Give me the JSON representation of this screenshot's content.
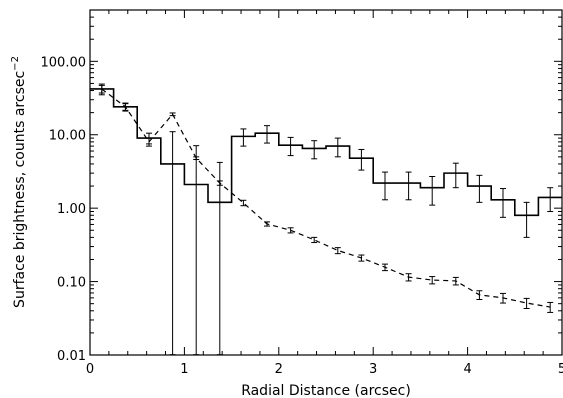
{
  "chart_data": {
    "type": "line",
    "title": "",
    "xlabel": "Radial Distance (arcsec)",
    "ylabel": "Surface brightness, counts arcsec",
    "ylabel_sup": "−2",
    "xlim": [
      0,
      5
    ],
    "ylim": [
      0.01,
      500
    ],
    "yscale": "log",
    "grid": false,
    "legend": "none",
    "x_ticks": [
      {
        "value": 0,
        "label": "0"
      },
      {
        "value": 1,
        "label": "1"
      },
      {
        "value": 2,
        "label": "2"
      },
      {
        "value": 3,
        "label": "3"
      },
      {
        "value": 4,
        "label": "4"
      },
      {
        "value": 5,
        "label": "5"
      }
    ],
    "y_ticks": [
      {
        "value": 0.01,
        "label": "0.01"
      },
      {
        "value": 0.1,
        "label": "0.10"
      },
      {
        "value": 1,
        "label": "1.00"
      },
      {
        "value": 10,
        "label": "10.00"
      },
      {
        "value": 100,
        "label": "100.00"
      }
    ],
    "series": [
      {
        "style": "solid-step",
        "color": "#000000",
        "bin_width": 0.25,
        "x": [
          0.125,
          0.375,
          0.625,
          0.875,
          1.125,
          1.375,
          1.625,
          1.875,
          2.125,
          2.375,
          2.625,
          2.875,
          3.125,
          3.375,
          3.625,
          3.875,
          4.125,
          4.375,
          4.625,
          4.875
        ],
        "y": [
          42,
          24,
          9,
          4.0,
          2.1,
          1.2,
          9.5,
          10.5,
          7.2,
          6.5,
          7.0,
          4.8,
          2.2,
          2.2,
          1.9,
          3.0,
          2.0,
          1.3,
          0.8,
          1.4
        ],
        "err": [
          7,
          3,
          1.5,
          7,
          5,
          3,
          2.5,
          2.8,
          2.0,
          1.8,
          2.0,
          1.5,
          0.9,
          0.9,
          0.8,
          1.1,
          0.8,
          0.55,
          0.4,
          0.5
        ]
      },
      {
        "style": "dashed",
        "color": "#000000",
        "x": [
          0.125,
          0.375,
          0.625,
          0.875,
          1.125,
          1.375,
          1.625,
          1.875,
          2.125,
          2.375,
          2.625,
          2.875,
          3.125,
          3.375,
          3.625,
          3.875,
          4.125,
          4.375,
          4.625,
          4.875
        ],
        "y": [
          42,
          24,
          8.0,
          19,
          4.8,
          2.2,
          1.18,
          0.61,
          0.5,
          0.37,
          0.265,
          0.21,
          0.157,
          0.115,
          0.105,
          0.102,
          0.066,
          0.06,
          0.051,
          0.045
        ],
        "err": [
          5,
          2.5,
          1.0,
          0.8,
          0.2,
          0.15,
          0.1,
          0.04,
          0.04,
          0.03,
          0.025,
          0.02,
          0.016,
          0.013,
          0.012,
          0.012,
          0.009,
          0.009,
          0.008,
          0.007
        ]
      }
    ]
  }
}
